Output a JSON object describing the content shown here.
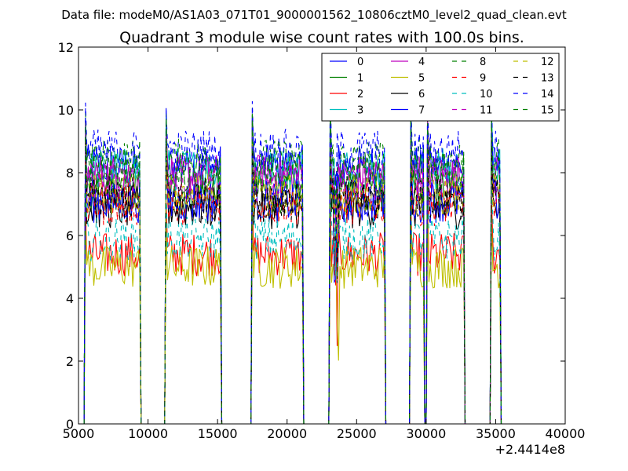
{
  "chart_data": {
    "type": "line",
    "suptitle": "Data file: modeM0/AS1A03_071T01_9000001562_10806cztM0_level2_quad_clean.evt",
    "title": "Quadrant 3 module wise count rates with 100.0s bins.",
    "xlabel": "",
    "ylabel": "",
    "x_offset_label": "+2.4414e8",
    "xlim": [
      5000,
      40000
    ],
    "ylim": [
      0,
      12
    ],
    "x_ticks": [
      5000,
      10000,
      15000,
      20000,
      25000,
      30000,
      35000,
      40000
    ],
    "x_tick_labels": [
      "5000",
      "10000",
      "15000",
      "20000",
      "25000",
      "30000",
      "35000",
      "40000"
    ],
    "y_ticks": [
      0,
      2,
      4,
      6,
      8,
      10,
      12
    ],
    "y_tick_labels": [
      "0",
      "2",
      "4",
      "6",
      "8",
      "10",
      "12"
    ],
    "legend_position": "top-right",
    "legend_columns": 4,
    "bin_seconds": 100,
    "orbit_segments": [
      {
        "x_start": 5500,
        "x_end": 9400
      },
      {
        "x_start": 11300,
        "x_end": 15200
      },
      {
        "x_start": 17500,
        "x_end": 21100
      },
      {
        "x_start": 23100,
        "x_end": 27000
      },
      {
        "x_start": 28900,
        "x_end": 29800
      },
      {
        "x_start": 30100,
        "x_end": 32700
      },
      {
        "x_start": 34700,
        "x_end": 35300
      }
    ],
    "gap_level": 0,
    "series": [
      {
        "name": "0",
        "color": "#0000ff",
        "style": "solid",
        "mean_rate": 8.2
      },
      {
        "name": "1",
        "color": "#008000",
        "style": "solid",
        "mean_rate": 7.4
      },
      {
        "name": "2",
        "color": "#ff0000",
        "style": "solid",
        "mean_rate": 5.4
      },
      {
        "name": "3",
        "color": "#00bfbf",
        "style": "solid",
        "mean_rate": 8.1
      },
      {
        "name": "4",
        "color": "#bf00bf",
        "style": "solid",
        "mean_rate": 7.9
      },
      {
        "name": "5",
        "color": "#bfbf00",
        "style": "solid",
        "mean_rate": 5.0
      },
      {
        "name": "6",
        "color": "#000000",
        "style": "solid",
        "mean_rate": 6.9
      },
      {
        "name": "7",
        "color": "#0000ff",
        "style": "solid",
        "mean_rate": 7.1
      },
      {
        "name": "8",
        "color": "#008000",
        "style": "dashed",
        "mean_rate": 8.4
      },
      {
        "name": "9",
        "color": "#ff0000",
        "style": "dashed",
        "mean_rate": 7.0
      },
      {
        "name": "10",
        "color": "#00bfbf",
        "style": "dashed",
        "mean_rate": 5.9
      },
      {
        "name": "11",
        "color": "#bf00bf",
        "style": "dashed",
        "mean_rate": 7.7
      },
      {
        "name": "12",
        "color": "#bfbf00",
        "style": "dashed",
        "mean_rate": 7.3
      },
      {
        "name": "13",
        "color": "#000000",
        "style": "dashed",
        "mean_rate": 7.2
      },
      {
        "name": "14",
        "color": "#0000ff",
        "style": "dashed",
        "mean_rate": 8.7
      },
      {
        "name": "15",
        "color": "#008000",
        "style": "dashed",
        "mean_rate": 8.0
      }
    ]
  }
}
